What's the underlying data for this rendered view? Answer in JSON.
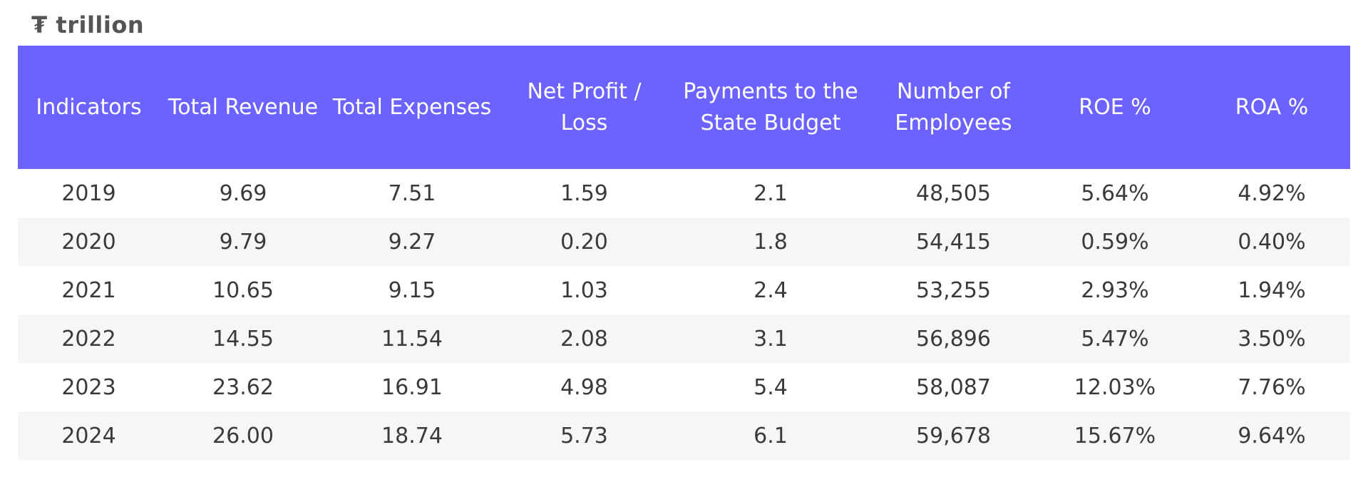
{
  "unit_label": "₮ trillion",
  "chart_data": {
    "type": "table",
    "columns": [
      "Indicators",
      "Total Revenue",
      "Total Expenses",
      "Net Profit / Loss",
      "Payments to the State Budget",
      "Number of Employees",
      "ROE %",
      "ROA %"
    ],
    "rows": [
      [
        "2019",
        "9.69",
        "7.51",
        "1.59",
        "2.1",
        "48,505",
        "5.64%",
        "4.92%"
      ],
      [
        "2020",
        "9.79",
        "9.27",
        "0.20",
        "1.8",
        "54,415",
        "0.59%",
        "0.40%"
      ],
      [
        "2021",
        "10.65",
        "9.15",
        "1.03",
        "2.4",
        "53,255",
        "2.93%",
        "1.94%"
      ],
      [
        "2022",
        "14.55",
        "11.54",
        "2.08",
        "3.1",
        "56,896",
        "5.47%",
        "3.50%"
      ],
      [
        "2023",
        "23.62",
        "16.91",
        "4.98",
        "5.4",
        "58,087",
        "12.03%",
        "7.76%"
      ],
      [
        "2024",
        "26.00",
        "18.74",
        "5.73",
        "6.1",
        "59,678",
        "15.67%",
        "9.64%"
      ]
    ],
    "colors": {
      "header_background": "#6c63ff",
      "header_text": "#ffffff",
      "stripe_background": "#f5f6f8"
    }
  }
}
